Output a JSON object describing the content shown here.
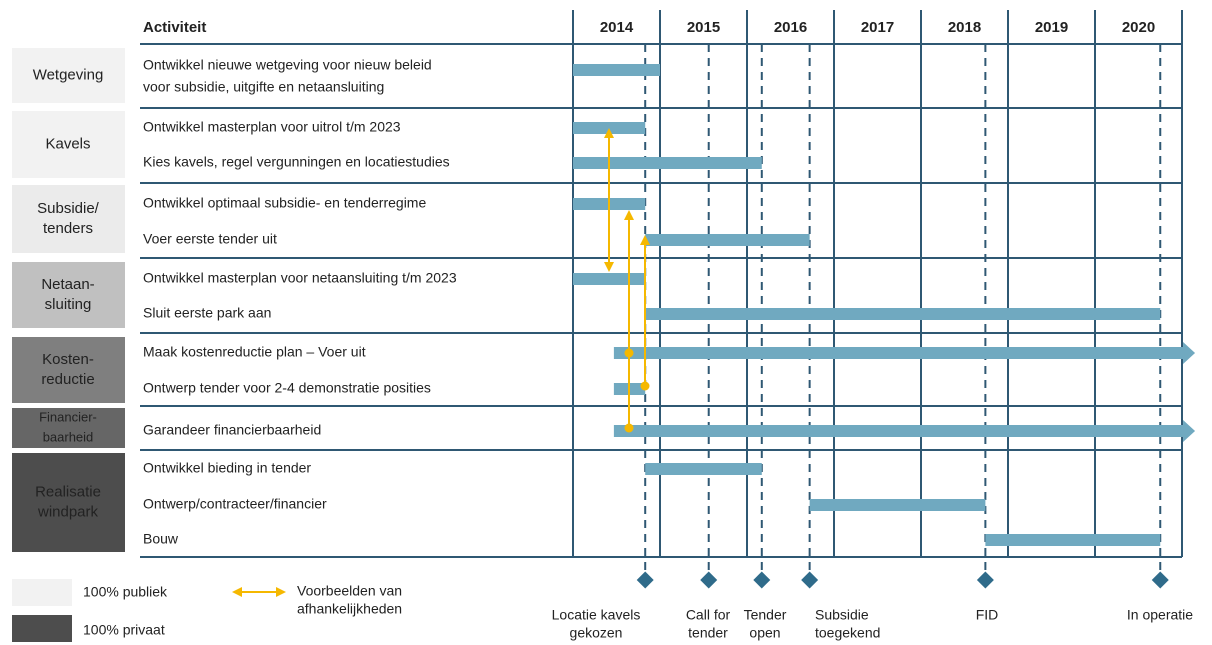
{
  "header": {
    "activity_label": "Activiteit",
    "years": [
      2014,
      2015,
      2016,
      2017,
      2018,
      2019,
      2020
    ]
  },
  "timeline": {
    "xlim": [
      2014,
      2021
    ],
    "bar_color": "#70a9c0"
  },
  "groups": [
    {
      "label": [
        "Wetgeving"
      ],
      "color": "#f2f2f2",
      "text_color": "#222222",
      "activities": [
        {
          "label": [
            "Ontwikkel nieuwe wetgeving voor nieuw beleid",
            "voor subsidie, uitgifte en netaansluiting"
          ],
          "start": 2014,
          "end": 2015
        }
      ]
    },
    {
      "label": [
        "Kavels"
      ],
      "color": "#f2f2f2",
      "text_color": "#222222",
      "activities": [
        {
          "label": [
            "Ontwikkel masterplan voor uitrol t/m 2023"
          ],
          "start": 2014,
          "end": 2014.83
        },
        {
          "label": [
            "Kies kavels, regel vergunningen en locatiestudies"
          ],
          "start": 2014,
          "end": 2016.17
        }
      ]
    },
    {
      "label": [
        "Subsidie/",
        "tenders"
      ],
      "color": "#ebebeb",
      "text_color": "#222222",
      "activities": [
        {
          "label": [
            "Ontwikkel optimaal subsidie- en tenderregime"
          ],
          "start": 2014,
          "end": 2014.83
        },
        {
          "label": [
            "Voer eerste tender uit"
          ],
          "start": 2014.83,
          "end": 2016.72
        }
      ]
    },
    {
      "label": [
        "Netaan-",
        "sluiting"
      ],
      "color": "#c0c0c0",
      "text_color": "#222222",
      "activities": [
        {
          "label": [
            "Ontwikkel masterplan voor netaansluiting t/m 2023"
          ],
          "start": 2014,
          "end": 2014.83
        },
        {
          "label": [
            "Sluit eerste park aan"
          ],
          "start": 2014.83,
          "end": 2020.75
        }
      ]
    },
    {
      "label": [
        "Kosten-",
        "reductie"
      ],
      "color": "#7f7f7f",
      "text_color": "#ffffff",
      "activities": [
        {
          "label": [
            "Maak kostenreductie plan – Voer uit"
          ],
          "start": 2014.47,
          "end": 2021.15,
          "arrow": true
        },
        {
          "label": [
            "Ontwerp tender voor 2-4 demonstratie posities"
          ],
          "start": 2014.47,
          "end": 2014.83
        }
      ]
    },
    {
      "label": [
        "Financier-",
        "baarheid"
      ],
      "color": "#666666",
      "text_color": "#ffffff",
      "activities": [
        {
          "label": [
            "Garandeer financierbaarheid"
          ],
          "start": 2014.47,
          "end": 2021.15,
          "arrow": true
        }
      ]
    },
    {
      "label": [
        "Realisatie",
        "windpark"
      ],
      "color": "#4d4d4d",
      "text_color": "#ffffff",
      "activities": [
        {
          "label": [
            "Ontwikkel bieding in tender"
          ],
          "start": 2014.83,
          "end": 2016.17
        },
        {
          "label": [
            "Ontwerp/contracteer/financier"
          ],
          "start": 2016.72,
          "end": 2018.74
        },
        {
          "label": [
            "Bouw"
          ],
          "start": 2018.74,
          "end": 2020.75
        }
      ]
    }
  ],
  "milestones": [
    {
      "label": [
        "Locatie kavels",
        "gekozen"
      ],
      "at": 2014.83
    },
    {
      "label": [
        "Call for",
        "tender"
      ],
      "at": 2015.56
    },
    {
      "label": [
        "Tender",
        "open"
      ],
      "at": 2016.17
    },
    {
      "label": [
        "Subsidie",
        "toegekend"
      ],
      "at": 2016.72
    },
    {
      "label": [
        "FID"
      ],
      "at": 2018.74
    },
    {
      "label": [
        "In operatie"
      ],
      "at": 2020.75
    }
  ],
  "legend": {
    "public": "100% publiek",
    "public_color": "#f2f2f2",
    "private": "100% privaat",
    "private_color": "#4d4d4d",
    "dependency": [
      "Voorbeelden van",
      "afhankelijkheden"
    ],
    "dependency_color": "#f5b800"
  }
}
